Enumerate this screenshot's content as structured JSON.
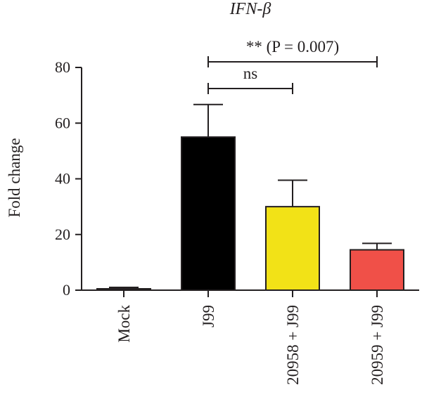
{
  "chart_data": {
    "type": "bar",
    "title": "IFN-β",
    "ylabel": "Fold change",
    "xlabel": "",
    "ylim": [
      0,
      80
    ],
    "yticks": [
      0,
      20,
      40,
      60,
      80
    ],
    "categories": [
      "Mock",
      "J99",
      "20958 + J99",
      "20959 + J99"
    ],
    "values": [
      0.5,
      55,
      30,
      14.5
    ],
    "errors": [
      0.5,
      11.7,
      9.5,
      2.3
    ],
    "colors": [
      "#000000",
      "#000000",
      "#f2e217",
      "#f05048"
    ],
    "annotations": [
      {
        "label": "ns",
        "from": "J99",
        "to": "20958 + J99"
      },
      {
        "label": "** (P = 0.007)",
        "from": "J99",
        "to": "20959 + J99"
      }
    ],
    "grid": false
  }
}
